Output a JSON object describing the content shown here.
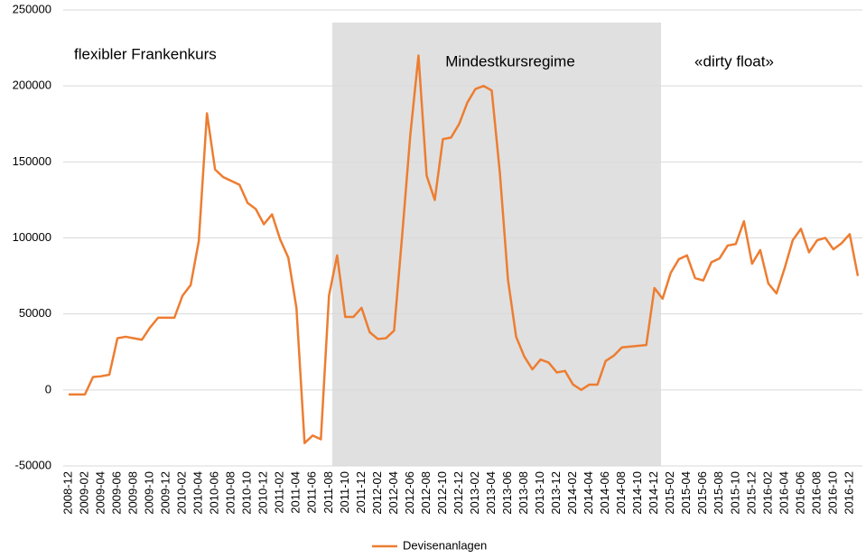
{
  "chart_data": {
    "type": "line",
    "annotations": [
      "flexibler Frankenkurs",
      "Mindestkursregime",
      "«dirty float»"
    ],
    "categories": [
      "2008-12",
      null,
      "2009-02",
      null,
      "2009-04",
      null,
      "2009-06",
      null,
      "2009-08",
      null,
      "2009-10",
      null,
      "2009-12",
      null,
      "2010-02",
      null,
      "2010-04",
      null,
      "2010-06",
      null,
      "2010-08",
      null,
      "2010-10",
      null,
      "2010-12",
      null,
      "2011-02",
      null,
      "2011-04",
      null,
      "2011-06",
      null,
      "2011-08",
      null,
      "2011-10",
      null,
      "2011-12",
      null,
      "2012-02",
      null,
      "2012-04",
      null,
      "2012-06",
      null,
      "2012-08",
      null,
      "2012-10",
      null,
      "2012-12",
      null,
      "2013-02",
      null,
      "2013-04",
      null,
      "2013-06",
      null,
      "2013-08",
      null,
      "2013-10",
      null,
      "2013-12",
      null,
      "2014-02",
      null,
      "2014-04",
      null,
      "2014-06",
      null,
      "2014-08",
      null,
      "2014-10",
      null,
      "2014-12",
      null,
      "2015-02",
      null,
      "2015-04",
      null,
      "2015-06",
      null,
      "2015-08",
      null,
      "2015-10",
      null,
      "2015-12",
      null,
      "2016-02",
      null,
      "2016-04",
      null,
      "2016-06",
      null,
      "2016-08",
      null,
      "2016-10",
      null,
      "2016-12",
      null
    ],
    "series": [
      {
        "name": "Devisenanlagen",
        "color": "#ed7d31",
        "values": [
          -3000,
          -3000,
          -3000,
          8500,
          9000,
          10000,
          34000,
          35000,
          34000,
          33000,
          41000,
          47500,
          47500,
          47500,
          62000,
          69000,
          98000,
          182000,
          145000,
          140000,
          137500,
          135000,
          123000,
          119000,
          109000,
          115500,
          99000,
          87000,
          54000,
          -35000,
          -30000,
          -32500,
          62000,
          88500,
          48000,
          48000,
          54000,
          38000,
          33500,
          34000,
          39000,
          102000,
          168000,
          220000,
          141000,
          125000,
          165000,
          166000,
          175000,
          189000,
          198000,
          200000,
          197000,
          143000,
          72500,
          35000,
          22000,
          13500,
          20000,
          18000,
          11500,
          12500,
          3500,
          0,
          3500,
          3500,
          19000,
          22500,
          28000,
          28500,
          29000,
          29500,
          67000,
          60000,
          77000,
          86000,
          88500,
          73500,
          72000,
          84000,
          86500,
          95000,
          96000,
          111000,
          83000,
          92000,
          70000,
          63500,
          80000,
          98500,
          106000,
          90500,
          98500,
          100000,
          92500,
          96500,
          102500,
          75000
        ]
      }
    ],
    "ylim": [
      -50000,
      250000
    ],
    "yticks": [
      -50000,
      0,
      50000,
      100000,
      150000,
      200000,
      250000
    ],
    "grid": true,
    "legend": "bottom"
  }
}
